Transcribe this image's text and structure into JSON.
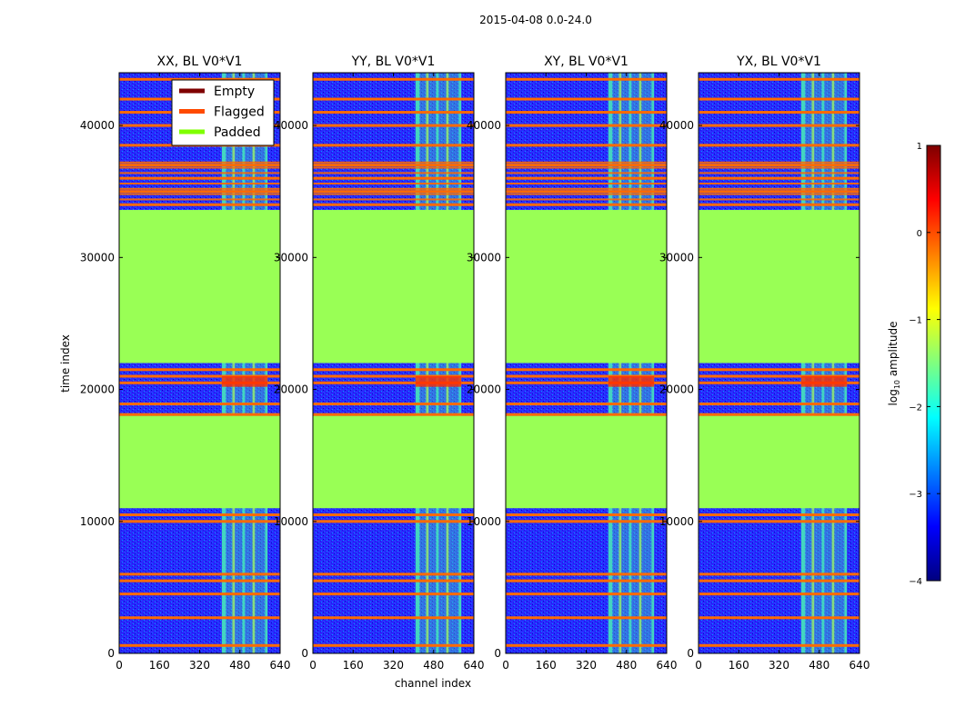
{
  "suptitle": "2015-04-08 0.0-24.0",
  "chart_data": {
    "type": "heatmap",
    "xlabel": "channel index",
    "ylabel": "time index",
    "xlim": [
      0,
      640
    ],
    "ylim": [
      0,
      44000
    ],
    "xticks": [
      0,
      160,
      320,
      480,
      640
    ],
    "yticks": [
      0,
      10000,
      20000,
      30000,
      40000
    ],
    "panels": [
      {
        "title": "XX, BL V0*V1",
        "polarization": "XX"
      },
      {
        "title": "YY, BL V0*V1",
        "polarization": "YY"
      },
      {
        "title": "XY, BL V0*V1",
        "polarization": "XY"
      },
      {
        "title": "YX, BL V0*V1",
        "polarization": "YX"
      }
    ],
    "legend": {
      "placement": "upper-center of first panel",
      "entries": [
        {
          "label": "Empty",
          "color": "#7f0000"
        },
        {
          "label": "Flagged",
          "color": "#ff4a00"
        },
        {
          "label": "Padded",
          "color": "#7fff00"
        }
      ]
    },
    "colorbar": {
      "label": "log10 amplitude",
      "label_base": "log",
      "label_sub": "10",
      "label_rest": " amplitude",
      "min": -4,
      "max": 1,
      "ticks": [
        "−4",
        "−3",
        "−2",
        "−1",
        "0",
        "1"
      ],
      "tick_values": [
        -4,
        -3,
        -2,
        -1,
        0,
        1
      ],
      "colormap": "jet",
      "jet_stops": [
        "#00007f",
        "#0000ff",
        "#007fff",
        "#00ffff",
        "#7fff7f",
        "#ffff00",
        "#ff7f00",
        "#ff0000",
        "#7f0000"
      ]
    },
    "padded_regions_time": [
      [
        11000,
        18000
      ],
      [
        22000,
        33600
      ]
    ],
    "band_columns_channel": [
      [
        408,
        424
      ],
      [
        450,
        460
      ],
      [
        490,
        500
      ],
      [
        530,
        540
      ],
      [
        580,
        590
      ]
    ],
    "flagged_rows_time": [
      600,
      2700,
      4500,
      5500,
      6000,
      10000,
      10500,
      18100,
      18900,
      20500,
      21000,
      21500,
      34000,
      35000,
      36000,
      37000,
      38500,
      40000,
      41000,
      42000,
      43500
    ],
    "colors": {
      "background_low": "#2323ff",
      "padded": "#99ff55",
      "band": "#4af5b5",
      "band_bright": "#d0ff30",
      "flagged": "#ff6a00",
      "hot": "#ff2a00"
    }
  }
}
